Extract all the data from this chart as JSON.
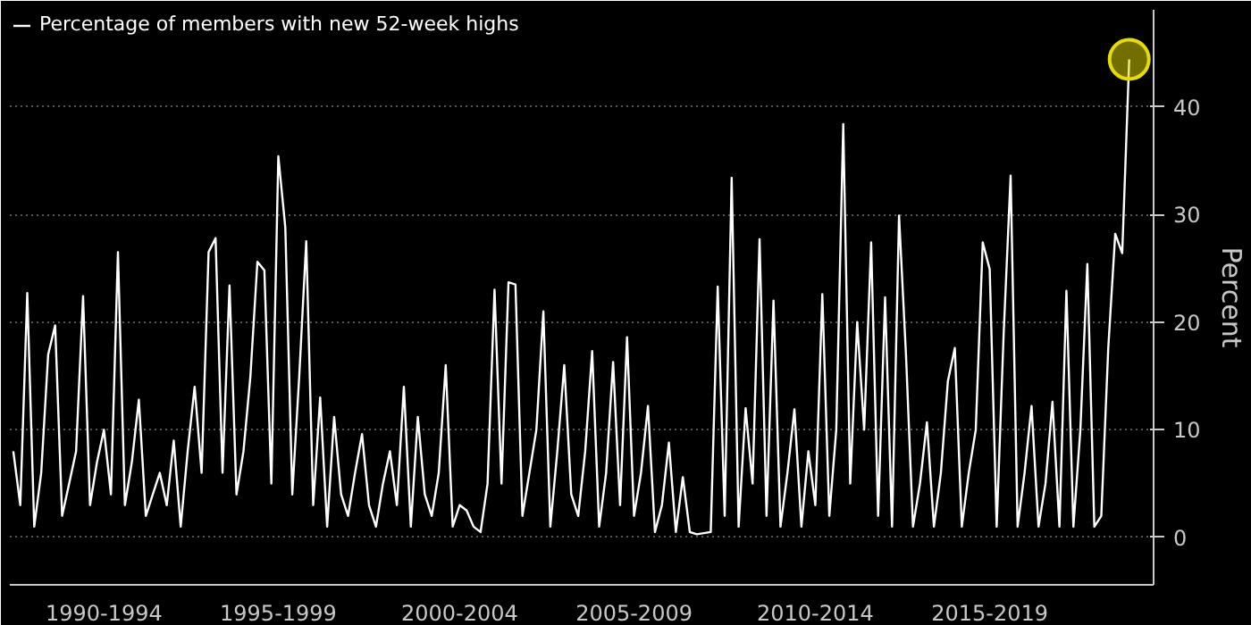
{
  "chart_data": {
    "type": "line",
    "categories": [
      null,
      null,
      null,
      null,
      null,
      null,
      null,
      null,
      null,
      null,
      null,
      null,
      null,
      "1990-1994",
      null,
      null,
      null,
      null,
      null,
      null,
      null,
      null,
      null,
      null,
      null,
      null,
      null,
      null,
      null,
      null,
      null,
      null,
      null,
      null,
      null,
      null,
      null,
      null,
      "1995-1999",
      null,
      null,
      null,
      null,
      null,
      null,
      null,
      null,
      null,
      null,
      null,
      null,
      null,
      null,
      null,
      null,
      null,
      null,
      null,
      null,
      null,
      null,
      null,
      null,
      null,
      "2000-2004",
      null,
      null,
      null,
      null,
      null,
      null,
      null,
      null,
      null,
      null,
      null,
      null,
      null,
      null,
      null,
      null,
      null,
      null,
      null,
      null,
      null,
      null,
      null,
      null,
      "2005-2009",
      null,
      null,
      null,
      null,
      null,
      null,
      null,
      null,
      null,
      null,
      null,
      null,
      null,
      null,
      null,
      null,
      null,
      null,
      null,
      null,
      null,
      null,
      null,
      null,
      null,
      "2010-2014",
      null,
      null,
      null,
      null,
      null,
      null,
      null,
      null,
      null,
      null,
      null,
      null,
      null,
      null,
      null,
      null,
      null,
      null,
      null,
      null,
      null,
      null,
      null,
      null,
      "2015-2019",
      null,
      null,
      null,
      null,
      null,
      null,
      null,
      null,
      null,
      null,
      null,
      null,
      null,
      null,
      null,
      null,
      null,
      null,
      null,
      null
    ],
    "ylim": [
      -4.4,
      49
    ],
    "yticks": [
      0,
      10,
      20,
      30,
      40
    ],
    "ylabel": "Percent",
    "grid": "y",
    "legend": "top left",
    "line_style": "solid",
    "marker": "none",
    "series": [
      {
        "name": "Percentage of members with new 52-week highs",
        "color": "#ffffff",
        "values": [
          8,
          3,
          22.7,
          1,
          6,
          17,
          19.7,
          2,
          5,
          8,
          22.4,
          3,
          7,
          10,
          4,
          26.5,
          3,
          7,
          12.8,
          2,
          4,
          6,
          3,
          9,
          1,
          8,
          14,
          6,
          26.5,
          27.8,
          6,
          23.4,
          4,
          8,
          15,
          25.6,
          24.8,
          5,
          35.4,
          28.8,
          4,
          15,
          27.5,
          3,
          13,
          1,
          11.2,
          4,
          2,
          6,
          9.6,
          3,
          1,
          5,
          8,
          3,
          14,
          1,
          11.2,
          4,
          2,
          6,
          16,
          1,
          3,
          2.5,
          1,
          0.5,
          5,
          23,
          5,
          23.7,
          23.5,
          2,
          6,
          10,
          21,
          1,
          8,
          16,
          4,
          2,
          8,
          17.3,
          1,
          6,
          16.3,
          3,
          18.6,
          2,
          6,
          12.2,
          0.5,
          3,
          8.8,
          0.5,
          5.6,
          0.5,
          0.3,
          0.4,
          0.5,
          23.3,
          2,
          33.4,
          1,
          12,
          5,
          27.7,
          2,
          22,
          1,
          6,
          11.9,
          1,
          8,
          3,
          22.6,
          2,
          10,
          38.4,
          5,
          20,
          10,
          27.4,
          2,
          22.3,
          1,
          29.9,
          16.9,
          1,
          5,
          10.7,
          1,
          6,
          14.5,
          17.6,
          1,
          6,
          10,
          27.4,
          24.9,
          1,
          18.9,
          33.6,
          1,
          6,
          12.2,
          1,
          5,
          12.6,
          1,
          22.9,
          1,
          10,
          25.4,
          1,
          2,
          17.6,
          28.2,
          26.4,
          44.4
        ]
      },
      {
        "type": "scatter",
        "marker": "circle",
        "color": "#e6dc00",
        "values": [
          null,
          null,
          null,
          null,
          null,
          null,
          null,
          null,
          null,
          null,
          null,
          null,
          null,
          null,
          null,
          null,
          null,
          null,
          null,
          null,
          null,
          null,
          null,
          null,
          null,
          null,
          null,
          null,
          null,
          null,
          null,
          null,
          null,
          null,
          null,
          null,
          null,
          null,
          null,
          null,
          null,
          null,
          null,
          null,
          null,
          null,
          null,
          null,
          null,
          null,
          null,
          null,
          null,
          null,
          null,
          null,
          null,
          null,
          null,
          null,
          null,
          null,
          null,
          null,
          null,
          null,
          null,
          null,
          null,
          null,
          null,
          null,
          null,
          null,
          null,
          null,
          null,
          null,
          null,
          null,
          null,
          null,
          null,
          null,
          null,
          null,
          null,
          null,
          null,
          null,
          null,
          null,
          null,
          null,
          null,
          null,
          null,
          null,
          null,
          null,
          null,
          null,
          null,
          null,
          null,
          null,
          null,
          null,
          null,
          null,
          null,
          null,
          null,
          null,
          null,
          null,
          null,
          null,
          null,
          null,
          null,
          null,
          null,
          null,
          null,
          null,
          null,
          null,
          null,
          null,
          null,
          null,
          null,
          null,
          null,
          null,
          null,
          null,
          null,
          null,
          null,
          null,
          null,
          null,
          null,
          null,
          null,
          null,
          null,
          null,
          null,
          null,
          null,
          null,
          null,
          null,
          null,
          null,
          null,
          null,
          44.4
        ]
      }
    ]
  }
}
